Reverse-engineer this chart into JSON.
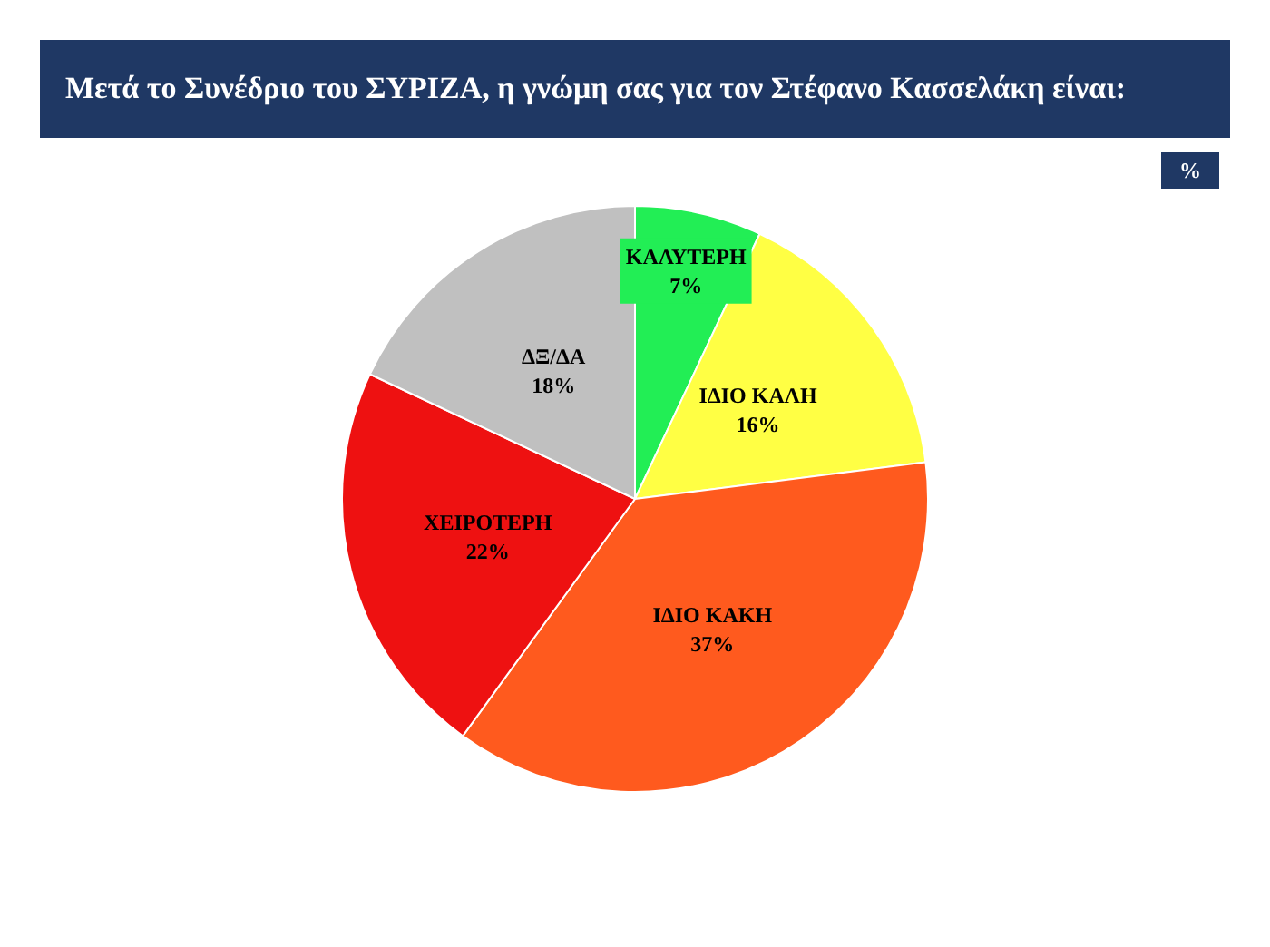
{
  "chart_data": {
    "type": "pie",
    "title": "Μετά το Συνέδριο του ΣΥΡΙΖΑ, η γνώμη σας για τον Στέφανο Κασσελάκη είναι:",
    "annotations": [
      "%"
    ],
    "categories": [
      "ΚΑΛΥΤΕΡΗ",
      "ΙΔΙΟ ΚΑΛΗ",
      "ΙΔΙΟ ΚΑΚΗ",
      "ΧΕΙΡΟΤΕΡΗ",
      "ΔΞ/ΔΑ"
    ],
    "values": [
      7,
      16,
      37,
      22,
      18
    ],
    "value_labels": [
      "7%",
      "16%",
      "37%",
      "22%",
      "18%"
    ],
    "colors": [
      "#22ee55",
      "#ffff44",
      "#ff5a1e",
      "#ee1111",
      "#c0c0c0"
    ],
    "legend": false
  }
}
